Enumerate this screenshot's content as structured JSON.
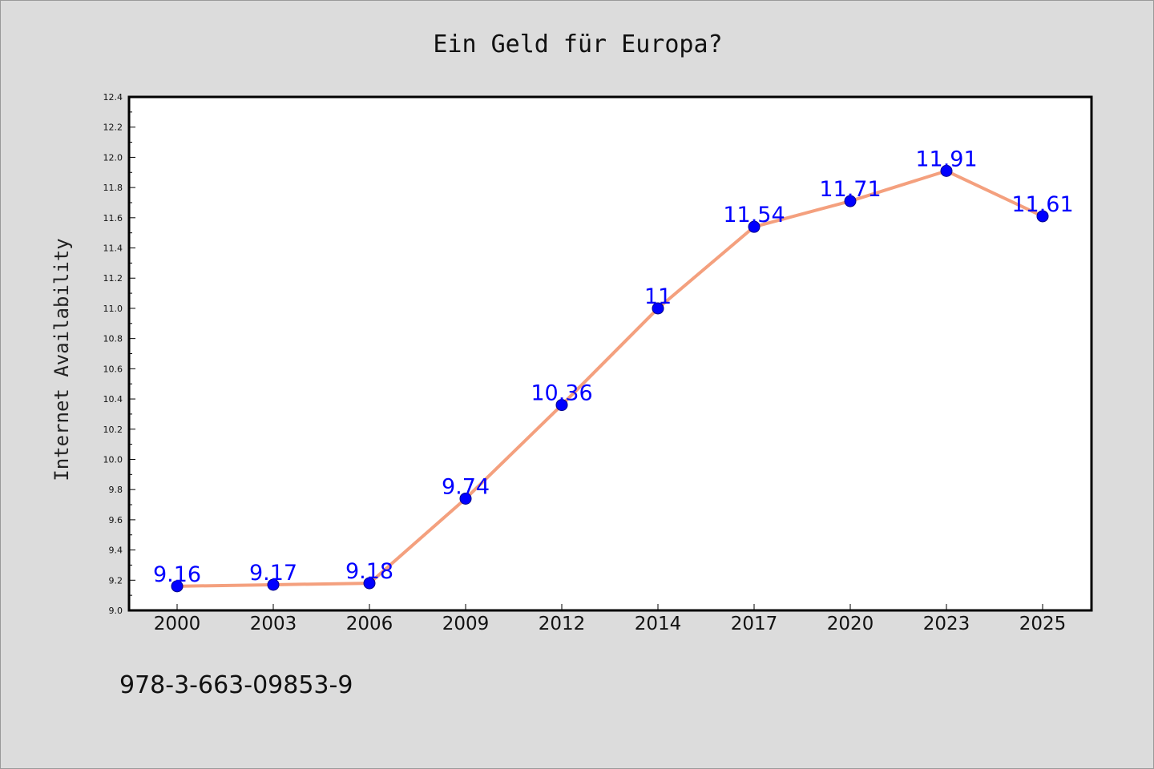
{
  "chart_data": {
    "type": "line",
    "title": "Ein Geld für Europa?",
    "ylabel": "Internet Availability",
    "xlabel": "",
    "categories": [
      "2000",
      "2003",
      "2006",
      "2009",
      "2012",
      "2014",
      "2017",
      "2020",
      "2023",
      "2025"
    ],
    "series": [
      {
        "values": [
          9.16,
          9.17,
          9.18,
          9.74,
          10.36,
          11,
          11.54,
          11.71,
          11.91,
          11.61
        ],
        "labels": [
          "9.16",
          "9.17",
          "9.18",
          "9.74",
          "10.36",
          "11",
          "11.54",
          "11.71",
          "11.91",
          "11.61"
        ]
      }
    ],
    "ylim": [
      9.0,
      12.4
    ],
    "yticks": [
      "9.0",
      "9.2",
      "9.4",
      "9.6",
      "9.8",
      "10.0",
      "10.2",
      "10.4",
      "10.6",
      "10.8",
      "11.0",
      "11.2",
      "11.4",
      "11.6",
      "11.8",
      "12.0",
      "12.2",
      "12.4"
    ],
    "grid": false,
    "legend": "none"
  },
  "footer": {
    "isbn": "978-3-663-09853-9"
  },
  "colors": {
    "background": "#dcdcdc",
    "plot_background": "#ffffff",
    "line": "#f4a07e",
    "marker_fill": "#0000ff",
    "marker_edge": "#00008b",
    "data_label": "#0000ff"
  }
}
